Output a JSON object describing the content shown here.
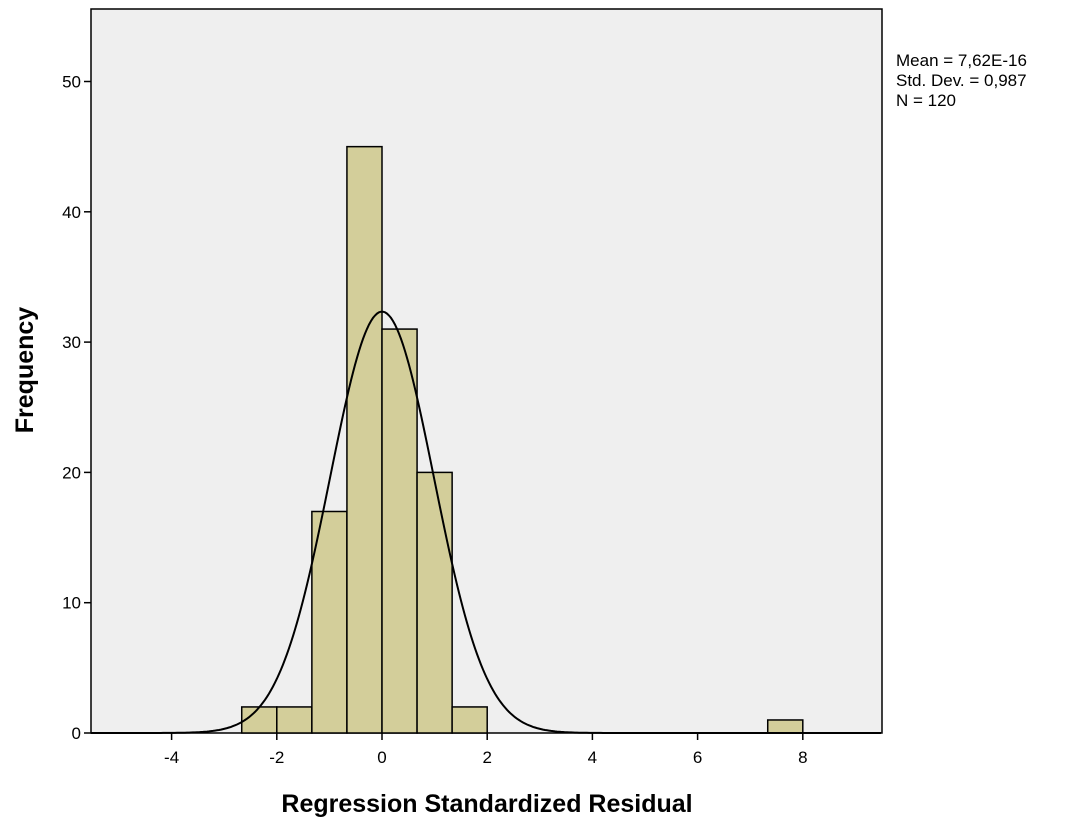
{
  "chart_data": {
    "type": "bar",
    "title": "",
    "xlabel": "Regression Standardized Residual",
    "ylabel": "Frequency",
    "xlim": [
      -5.5,
      9.5
    ],
    "ylim": [
      0,
      54
    ],
    "bin_width": 0.6667,
    "bins": [
      {
        "start": -2.6667,
        "end": -2.0,
        "count": 2
      },
      {
        "start": -2.0,
        "end": -1.3333,
        "count": 2
      },
      {
        "start": -1.3333,
        "end": -0.6667,
        "count": 17
      },
      {
        "start": -0.6667,
        "end": 0.0,
        "count": 45
      },
      {
        "start": 0.0,
        "end": 0.6667,
        "count": 31
      },
      {
        "start": 0.6667,
        "end": 1.3333,
        "count": 20
      },
      {
        "start": 1.3333,
        "end": 2.0,
        "count": 2
      },
      {
        "start": 7.3333,
        "end": 8.0,
        "count": 1
      }
    ],
    "x_ticks": [
      {
        "value": -4,
        "label": "-4"
      },
      {
        "value": -2,
        "label": "-2"
      },
      {
        "value": 0,
        "label": "0"
      },
      {
        "value": 2,
        "label": "2"
      },
      {
        "value": 4,
        "label": "4"
      },
      {
        "value": 6,
        "label": "6"
      },
      {
        "value": 8,
        "label": "8"
      }
    ],
    "y_ticks": [
      {
        "value": 0,
        "label": "0"
      },
      {
        "value": 10,
        "label": "10"
      },
      {
        "value": 20,
        "label": "20"
      },
      {
        "value": 30,
        "label": "30"
      },
      {
        "value": 40,
        "label": "40"
      },
      {
        "value": 50,
        "label": "50"
      }
    ],
    "normal_curve": {
      "mean": 0.0,
      "std_dev": 0.987,
      "n": 120
    },
    "stats": {
      "mean_label": "Mean = 7,62E-16",
      "std_dev_label": "Std. Dev. = 0,987",
      "n_label": "N = 120"
    },
    "grid": false,
    "legend": "right",
    "colors": {
      "plot_background": "#efefef",
      "bar_fill": "#d3ce9a",
      "bar_stroke": "#000000",
      "curve": "#000000"
    }
  }
}
